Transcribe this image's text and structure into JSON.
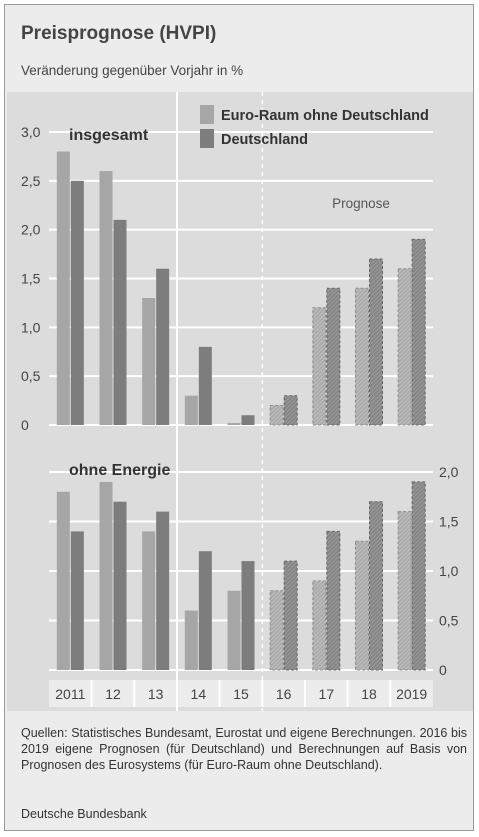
{
  "title": "Preisprognose (HVPI)",
  "subtitle": "Veränderung gegenüber Vorjahr in %",
  "sources": "Quellen: Statistisches Bundesamt, Eurostat und eigene Berechnungen. 2016 bis 2019 eigene Prognosen (für Deutschland) und Berechnungen auf Basis von Prognosen des Eurosystems (für Euro-Raum ohne Deutschland).",
  "publisher": "Deutsche Bundesbank",
  "colors": {
    "euro": "#a6a6a6",
    "germany": "#7d7d7d",
    "panel": "#dcdcdc",
    "grid": "#ffffff"
  },
  "chart_data": [
    {
      "type": "bar",
      "panel_label": "insgesamt",
      "categories": [
        "2011",
        "12",
        "13",
        "14",
        "15",
        "16",
        "17",
        "18",
        "2019"
      ],
      "series": [
        {
          "name": "Euro-Raum ohne Deutschland",
          "values": [
            2.8,
            2.6,
            1.3,
            0.3,
            0.02,
            0.2,
            1.2,
            1.4,
            1.6
          ]
        },
        {
          "name": "Deutschland",
          "values": [
            2.5,
            2.1,
            1.6,
            0.8,
            0.1,
            0.3,
            1.4,
            1.7,
            1.9
          ]
        }
      ],
      "forecast_label": "Prognose",
      "forecast_from": "16",
      "ylim": [
        0,
        3.0
      ],
      "y_ticks": [
        "0",
        "0,5",
        "1,0",
        "1,5",
        "2,0",
        "2,5",
        "3,0"
      ],
      "y_axis_side": "left",
      "grid": true,
      "legend": "top-right"
    },
    {
      "type": "bar",
      "panel_label": "ohne Energie",
      "categories": [
        "2011",
        "12",
        "13",
        "14",
        "15",
        "16",
        "17",
        "18",
        "2019"
      ],
      "series": [
        {
          "name": "Euro-Raum ohne Deutschland",
          "values": [
            1.8,
            1.9,
            1.4,
            0.6,
            0.8,
            0.8,
            0.9,
            1.3,
            1.6
          ]
        },
        {
          "name": "Deutschland",
          "values": [
            1.4,
            1.7,
            1.6,
            1.2,
            1.1,
            1.1,
            1.4,
            1.7,
            1.9
          ]
        }
      ],
      "forecast_from": "16",
      "ylim": [
        0,
        2.0
      ],
      "y_ticks": [
        "0",
        "0,5",
        "1,0",
        "1,5",
        "2,0"
      ],
      "y_axis_side": "right",
      "grid": true
    }
  ]
}
